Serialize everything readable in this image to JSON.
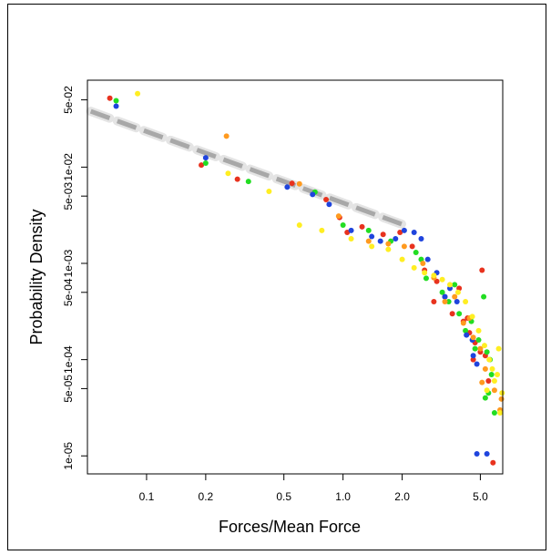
{
  "chart_data": {
    "type": "scatter",
    "title": "",
    "xlabel": "Forces/Mean Force",
    "ylabel": "Probability Density",
    "x_scale": "log",
    "y_scale": "log",
    "xlim": [
      0.05,
      6.5
    ],
    "ylim": [
      6.5e-06,
      0.08
    ],
    "x_ticks": [
      {
        "value": 0.1,
        "label": "0.1"
      },
      {
        "value": 0.2,
        "label": "0.2"
      },
      {
        "value": 0.5,
        "label": "0.5"
      },
      {
        "value": 1.0,
        "label": "1.0"
      },
      {
        "value": 2.0,
        "label": "2.0"
      },
      {
        "value": 5.0,
        "label": "5.0"
      }
    ],
    "y_ticks": [
      {
        "value": 1e-05,
        "label": "1e-05"
      },
      {
        "value": 5e-05,
        "label": "5e-05"
      },
      {
        "value": 0.0001,
        "label": "1e-04"
      },
      {
        "value": 0.0005,
        "label": "5e-04"
      },
      {
        "value": 0.001,
        "label": "1e-03"
      },
      {
        "value": 0.005,
        "label": "5e-03"
      },
      {
        "value": 0.01,
        "label": "1e-02"
      },
      {
        "value": 0.05,
        "label": "5e-02"
      }
    ],
    "grid": false,
    "legend": "none",
    "fit_line": {
      "style": "dashed",
      "color": "#a8a8a8",
      "x": [
        0.052,
        2.05
      ],
      "y": [
        0.038,
        0.0025
      ]
    },
    "series": [
      {
        "color": "#e8321e",
        "points": [
          [
            0.065,
            0.052
          ],
          [
            0.19,
            0.0105
          ],
          [
            0.29,
            0.0075
          ],
          [
            0.55,
            0.0068
          ],
          [
            0.82,
            0.0046
          ],
          [
            0.96,
            0.003
          ],
          [
            1.05,
            0.0021
          ],
          [
            1.25,
            0.0024
          ],
          [
            1.6,
            0.002
          ],
          [
            1.95,
            0.0021
          ],
          [
            2.25,
            0.0015
          ],
          [
            2.6,
            0.00085
          ],
          [
            3.0,
            0.00065
          ],
          [
            3.3,
            0.00045
          ],
          [
            3.6,
            0.0003
          ],
          [
            3.9,
            0.00055
          ],
          [
            4.1,
            0.00025
          ],
          [
            4.4,
            0.00019
          ],
          [
            4.7,
            0.00015
          ],
          [
            5.0,
            0.00012
          ],
          [
            5.1,
            0.00085
          ],
          [
            5.3,
            0.00011
          ],
          [
            5.5,
            6e-05
          ],
          [
            5.8,
            8.5e-06
          ],
          [
            4.3,
            0.00027
          ],
          [
            4.6,
            0.0001
          ],
          [
            2.9,
            0.0004
          ]
        ]
      },
      {
        "color": "#22dd22",
        "points": [
          [
            0.07,
            0.049
          ],
          [
            0.2,
            0.011
          ],
          [
            0.33,
            0.0071
          ],
          [
            0.72,
            0.0055
          ],
          [
            1.0,
            0.0025
          ],
          [
            1.35,
            0.0022
          ],
          [
            1.75,
            0.0017
          ],
          [
            2.35,
            0.0013
          ],
          [
            2.65,
            0.0007
          ],
          [
            3.2,
            0.0005
          ],
          [
            3.45,
            0.0004
          ],
          [
            3.9,
            0.0003
          ],
          [
            4.2,
            0.0002
          ],
          [
            4.5,
            0.00025
          ],
          [
            4.9,
            0.00016
          ],
          [
            5.2,
            0.00045
          ],
          [
            5.4,
            0.00012
          ],
          [
            5.6,
            0.0001
          ],
          [
            5.7,
            7e-05
          ],
          [
            5.9,
            2.8e-05
          ],
          [
            5.3,
            4e-05
          ],
          [
            5.5,
            4.5e-05
          ],
          [
            4.7,
            0.00013
          ],
          [
            3.7,
            0.0006
          ],
          [
            2.5,
            0.0011
          ]
        ]
      },
      {
        "color": "#1f44dd",
        "points": [
          [
            0.07,
            0.043
          ],
          [
            0.2,
            0.0125
          ],
          [
            0.52,
            0.0062
          ],
          [
            0.7,
            0.0052
          ],
          [
            0.85,
            0.0041
          ],
          [
            1.1,
            0.0022
          ],
          [
            1.4,
            0.0019
          ],
          [
            1.55,
            0.0017
          ],
          [
            1.85,
            0.0018
          ],
          [
            2.05,
            0.0022
          ],
          [
            2.3,
            0.0021
          ],
          [
            2.5,
            0.0018
          ],
          [
            2.7,
            0.0011
          ],
          [
            3.0,
            0.0008
          ],
          [
            3.5,
            0.00055
          ],
          [
            3.8,
            0.0004
          ],
          [
            4.25,
            0.00018
          ],
          [
            4.55,
            0.00016
          ],
          [
            4.6,
            0.00011
          ],
          [
            4.8,
            1.05e-05
          ],
          [
            5.4,
            1.05e-05
          ],
          [
            4.8,
            9e-05
          ],
          [
            3.3,
            0.00045
          ]
        ]
      },
      {
        "color": "#ff9a1f",
        "points": [
          [
            0.255,
            0.021
          ],
          [
            0.6,
            0.0067
          ],
          [
            0.95,
            0.0031
          ],
          [
            1.35,
            0.0017
          ],
          [
            1.7,
            0.0016
          ],
          [
            2.05,
            0.0015
          ],
          [
            2.55,
            0.001
          ],
          [
            2.9,
            0.00071
          ],
          [
            3.3,
            0.0004
          ],
          [
            3.7,
            0.00045
          ],
          [
            4.1,
            0.00024
          ],
          [
            4.6,
            0.00017
          ],
          [
            5.0,
            0.00013
          ],
          [
            5.3,
            8e-05
          ],
          [
            5.9,
            4.8e-05
          ],
          [
            6.3,
            3e-05
          ],
          [
            6.4,
            3.9e-05
          ],
          [
            5.1,
            5.8e-05
          ],
          [
            4.4,
            0.00027
          ]
        ]
      },
      {
        "color": "#ffee22",
        "points": [
          [
            0.09,
            0.058
          ],
          [
            0.26,
            0.0086
          ],
          [
            0.42,
            0.0056
          ],
          [
            0.6,
            0.0025
          ],
          [
            0.78,
            0.0022
          ],
          [
            1.1,
            0.0018
          ],
          [
            1.4,
            0.0015
          ],
          [
            1.7,
            0.0014
          ],
          [
            2.0,
            0.0011
          ],
          [
            2.3,
            0.0009
          ],
          [
            2.6,
            0.0008
          ],
          [
            2.9,
            0.00075
          ],
          [
            3.2,
            0.00068
          ],
          [
            3.5,
            0.0006
          ],
          [
            3.85,
            0.0005
          ],
          [
            4.2,
            0.0004
          ],
          [
            4.55,
            0.00028
          ],
          [
            4.9,
            0.0002
          ],
          [
            5.25,
            0.00014
          ],
          [
            5.55,
            0.0001
          ],
          [
            5.75,
            8e-05
          ],
          [
            5.9,
            6e-05
          ],
          [
            6.1,
            7e-05
          ],
          [
            6.3,
            2.8e-05
          ],
          [
            6.45,
            4.5e-05
          ],
          [
            6.2,
            0.00013
          ],
          [
            5.4,
            4.8e-05
          ]
        ]
      }
    ]
  }
}
